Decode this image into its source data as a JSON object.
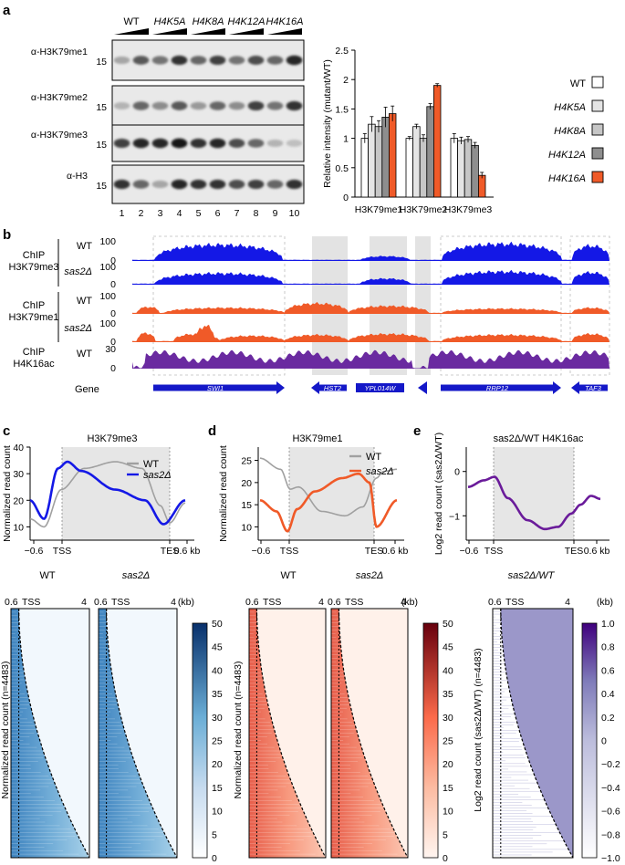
{
  "panel_labels": {
    "a": "a",
    "b": "b",
    "c": "c",
    "d": "d",
    "e": "e"
  },
  "panel_a": {
    "lane_groups": [
      "WT",
      "H4K5A",
      "H4K8A",
      "H4K12A",
      "H4K16A"
    ],
    "antibodies": [
      "α-H3K79me1",
      "α-H3K79me2",
      "α-H3K79me3",
      "α-H3"
    ],
    "size_marker": "15",
    "lane_numbers": [
      "1",
      "2",
      "3",
      "4",
      "5",
      "6",
      "7",
      "8",
      "9",
      "10"
    ],
    "blot_intensities": [
      [
        0.35,
        0.65,
        0.55,
        0.8,
        0.6,
        0.75,
        0.55,
        0.7,
        0.6,
        0.85
      ],
      [
        0.3,
        0.6,
        0.45,
        0.65,
        0.4,
        0.6,
        0.45,
        0.75,
        0.55,
        0.8
      ],
      [
        0.75,
        0.85,
        0.85,
        0.9,
        0.8,
        0.85,
        0.7,
        0.6,
        0.3,
        0.25
      ],
      [
        0.8,
        0.6,
        0.35,
        0.85,
        0.8,
        0.8,
        0.7,
        0.75,
        0.6,
        0.8
      ]
    ],
    "chart_data": {
      "type": "bar",
      "ylabel": "Relative intensity (mutant/WT)",
      "ylim": [
        0,
        2.5
      ],
      "yticks": [
        "0",
        "0.5",
        "1",
        "1.5",
        "2",
        "2.5"
      ],
      "categories": [
        "H3K79me1",
        "H3K79me2",
        "H3K79me3"
      ],
      "series": [
        {
          "name": "WT",
          "color": "#ffffff",
          "values": [
            1.0,
            1.0,
            1.0
          ],
          "errors": [
            0.08,
            0.03,
            0.08
          ]
        },
        {
          "name": "H4K5A",
          "color": "#e4e4e4",
          "values": [
            1.24,
            1.2,
            0.96
          ],
          "errors": [
            0.13,
            0.04,
            0.06
          ]
        },
        {
          "name": "H4K8A",
          "color": "#c6c6c6",
          "values": [
            1.2,
            1.0,
            0.98
          ],
          "errors": [
            0.1,
            0.06,
            0.05
          ]
        },
        {
          "name": "H4K12A",
          "color": "#8e8e8e",
          "values": [
            1.36,
            1.54,
            0.88
          ],
          "errors": [
            0.17,
            0.05,
            0.05
          ]
        },
        {
          "name": "H4K16A",
          "color": "#f05a28",
          "values": [
            1.42,
            1.9,
            0.37
          ],
          "errors": [
            0.13,
            0.03,
            0.05
          ]
        }
      ]
    }
  },
  "panel_b": {
    "track_labels": [
      {
        "line1": "ChIP",
        "line2": "H3K79me3"
      },
      {
        "line1": "ChIP",
        "line2": "H3K79me1"
      },
      {
        "line1": "ChIP",
        "line2": "H4K16ac"
      }
    ],
    "strains": [
      "WT",
      "sas2Δ",
      "WT",
      "sas2Δ",
      "WT"
    ],
    "scales": [
      {
        "top": "100",
        "bottom": "0"
      },
      {
        "top": "100",
        "bottom": "0"
      },
      {
        "top": "100",
        "bottom": "0"
      },
      {
        "top": "100",
        "bottom": "0"
      },
      {
        "top": "30",
        "bottom": "0"
      }
    ],
    "track_colors": [
      "#1418e6",
      "#1418e6",
      "#f05a28",
      "#f05a28",
      "#6a2aa0"
    ],
    "gene_label": "Gene",
    "genes": [
      "SWI1",
      "HST2",
      "YPL014W",
      "RRP12",
      "TAF3"
    ]
  },
  "panel_c": {
    "title": "H3K79me3",
    "ylabel": "Normalized read count",
    "yticks": [
      "10",
      "20",
      "30",
      "40"
    ],
    "xticks": [
      "−0.6",
      "TSS",
      "TES",
      "0.6 kb"
    ],
    "legend": [
      "WT",
      "sas2Δ"
    ],
    "heatmap_titles": [
      "WT",
      "sas2Δ"
    ],
    "heatmap_axis": {
      "start": "0.6",
      "tss": "TSS",
      "end": "4",
      "unit": "(kb)"
    },
    "heatmap_ylabel": "Normalized read count (n=4483)",
    "colorbar_ticks": [
      "0",
      "5",
      "10",
      "15",
      "20",
      "25",
      "30",
      "35",
      "40",
      "45",
      "50"
    ]
  },
  "panel_d": {
    "title": "H3K79me1",
    "ylabel": "Normalized read count",
    "yticks": [
      "10",
      "15",
      "20",
      "25"
    ],
    "xticks": [
      "−0.6",
      "TSS",
      "TES",
      "0.6 kb"
    ],
    "legend": [
      "WT",
      "sas2Δ"
    ],
    "heatmap_titles": [
      "WT",
      "sas2Δ"
    ],
    "heatmap_axis": {
      "start": "0.6",
      "tss": "TSS",
      "end": "4",
      "unit": "(kb)"
    },
    "heatmap_ylabel": "Normalized read count (n=4483)",
    "colorbar_ticks": [
      "0",
      "5",
      "10",
      "15",
      "20",
      "25",
      "30",
      "35",
      "40",
      "45",
      "50"
    ]
  },
  "panel_e": {
    "title": "sas2Δ/WT H4K16ac",
    "ylabel": "Log2 read count (sas2Δ/WT)",
    "yticks": [
      "0",
      "−1"
    ],
    "xticks": [
      "−0.6",
      "TSS",
      "TES",
      "0.6 kb"
    ],
    "heatmap_title": "sas2Δ/WT",
    "heatmap_axis": {
      "start": "0.6",
      "tss": "TSS",
      "end": "4",
      "unit": "(kb)"
    },
    "heatmap_ylabel": "Log2 read count (sas2Δ/WT) (n=4483)",
    "colorbar_ticks": [
      "1.0",
      "0.8",
      "0.6",
      "0.4",
      "0.2",
      "0",
      "−0.2",
      "−0.4",
      "−0.6",
      "−0.8",
      "−1.0"
    ]
  },
  "colors": {
    "wt_gray": "#a0a0a0",
    "blue": "#1418e6",
    "orange": "#f05a28",
    "purple": "#6a1b9a",
    "shade": "#e6e6e6"
  }
}
